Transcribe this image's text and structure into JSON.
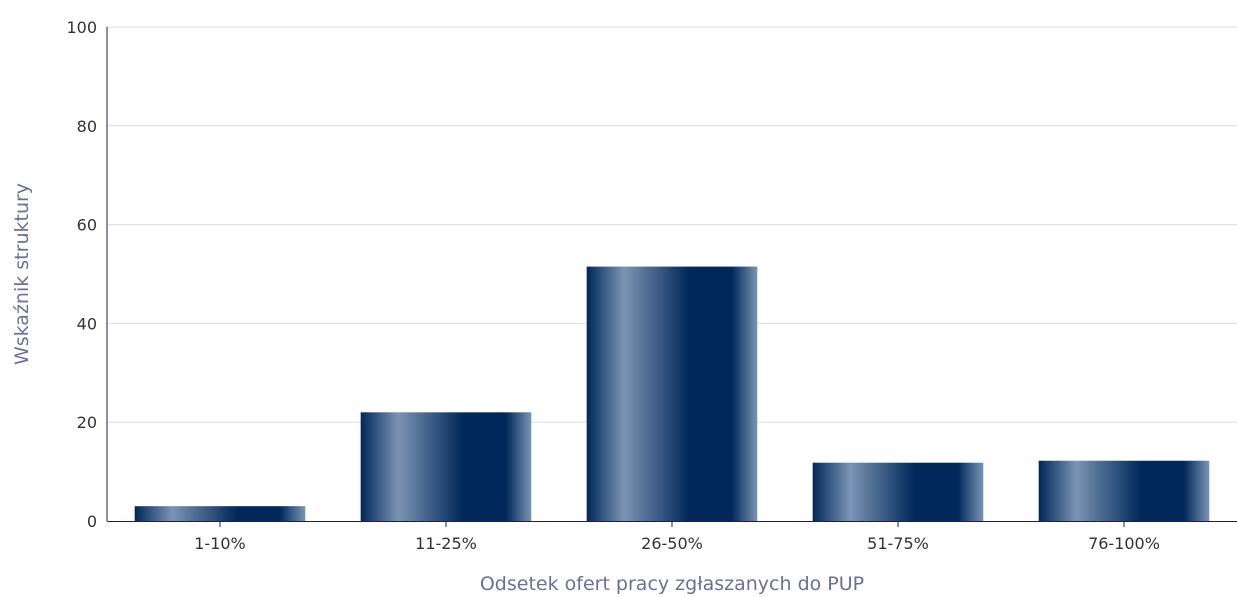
{
  "chart_data": {
    "type": "bar",
    "title": "",
    "xlabel": "Odsetek ofert pracy zgłaszanych do PUP",
    "ylabel": "Wskaźnik struktury",
    "categories": [
      "1-10%",
      "11-25%",
      "26-50%",
      "51-75%",
      "76-100%"
    ],
    "values": [
      3,
      22,
      51.5,
      11.8,
      12.2
    ],
    "ylim": [
      0,
      100
    ],
    "yticks": [
      "0",
      "20",
      "40",
      "60",
      "80",
      "100"
    ],
    "grid": true,
    "legend": "none",
    "colors": {
      "bar_dark": "#00285a",
      "bar_light": "#7b94b4",
      "grid": "#dcdce8",
      "axis": "#1a1f4d",
      "axis_title": "#6b6f9e"
    }
  }
}
